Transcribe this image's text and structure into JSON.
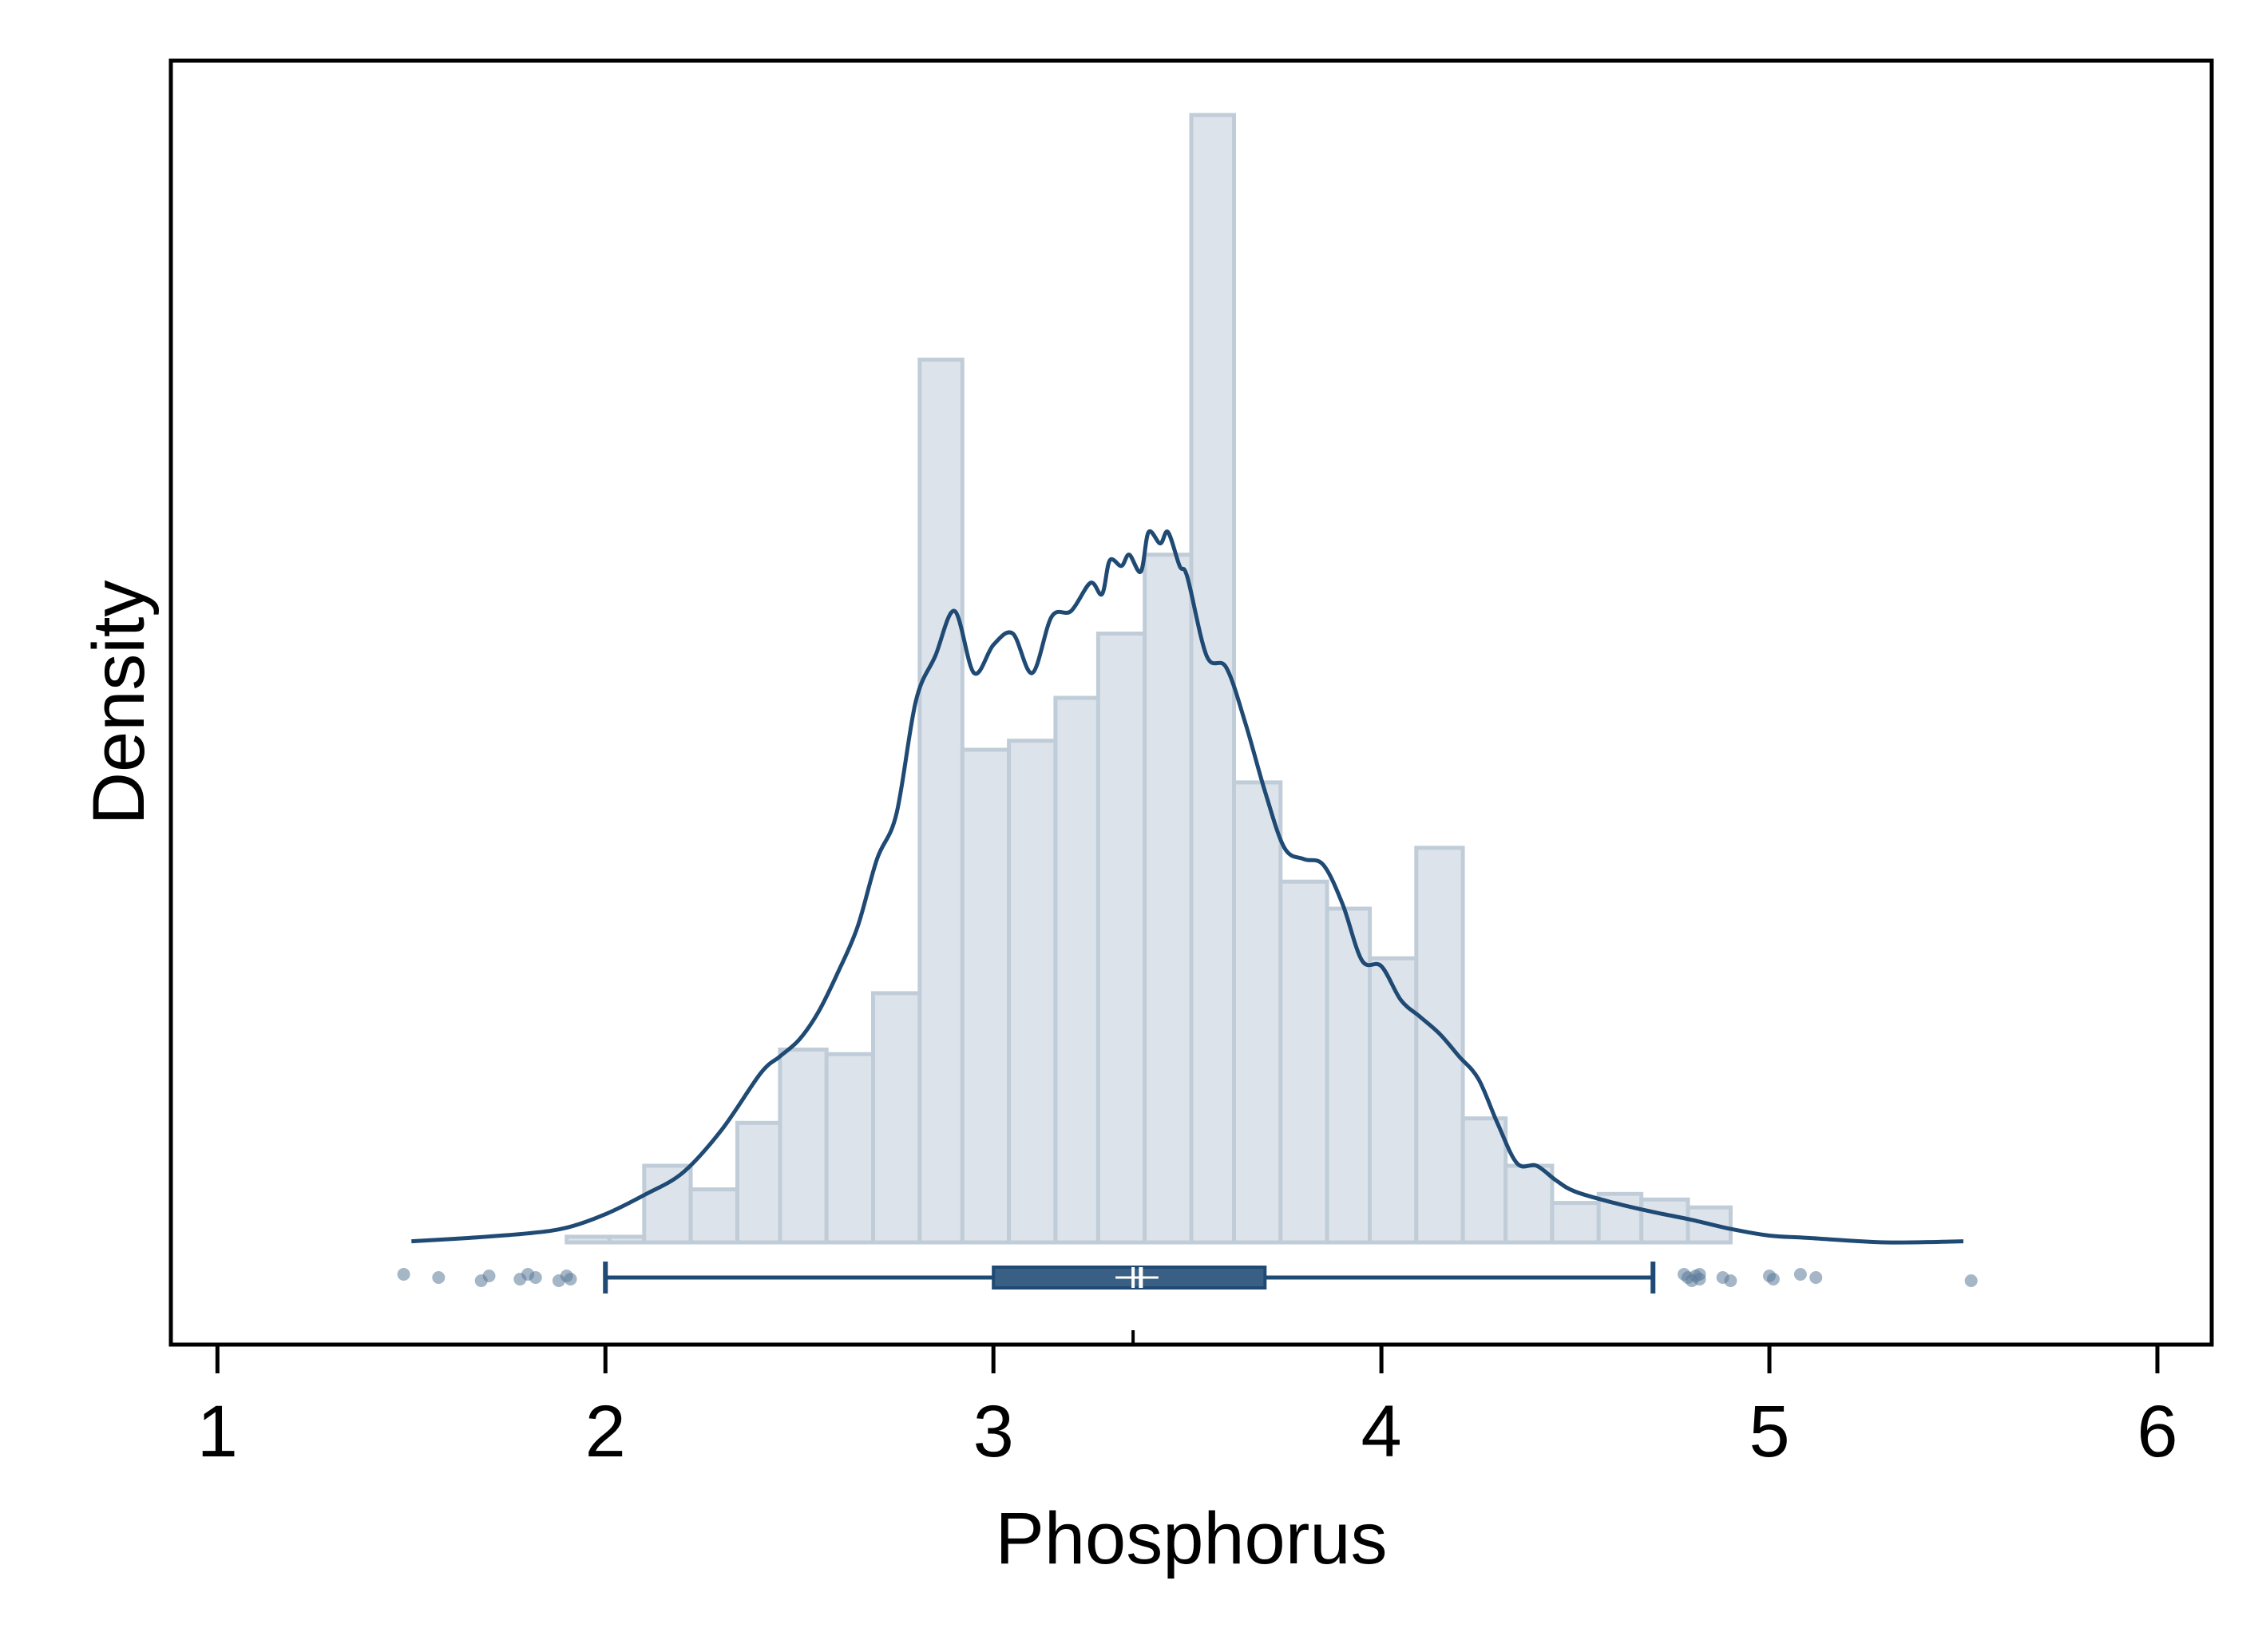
{
  "chart_data": {
    "type": "histogram",
    "xlabel": "Phosphorus",
    "ylabel": "Density",
    "xlim": [
      0.88,
      6.14
    ],
    "ylim": [
      -0.12,
      1.05
    ],
    "x_ticks": [
      1,
      2,
      3,
      4,
      5,
      6
    ],
    "x_tick_labels": [
      "1",
      "2",
      "3",
      "4",
      "5",
      "6"
    ],
    "grid": false,
    "legend": "none",
    "colors": {
      "bar_fill": "#dce3ea",
      "bar_stroke": "#c0cdd8",
      "line": "#1f4a74",
      "box_fill": "#3a5f85",
      "outlier": "#5b7a99",
      "frame": "#000000"
    },
    "histogram": {
      "bin_width": 0.117,
      "bins": [
        {
          "x0": 1.9,
          "x1": 2.01,
          "density": 0.005
        },
        {
          "x0": 2.01,
          "x1": 2.1,
          "density": 0.005
        },
        {
          "x0": 2.1,
          "x1": 2.22,
          "density": 0.068
        },
        {
          "x0": 2.22,
          "x1": 2.34,
          "density": 0.047
        },
        {
          "x0": 2.34,
          "x1": 2.45,
          "density": 0.106
        },
        {
          "x0": 2.45,
          "x1": 2.57,
          "density": 0.171
        },
        {
          "x0": 2.57,
          "x1": 2.69,
          "density": 0.167
        },
        {
          "x0": 2.69,
          "x1": 2.81,
          "density": 0.221
        },
        {
          "x0": 2.81,
          "x1": 2.92,
          "density": 0.783
        },
        {
          "x0": 2.92,
          "x1": 3.04,
          "density": 0.437
        },
        {
          "x0": 3.04,
          "x1": 3.16,
          "density": 0.445
        },
        {
          "x0": 3.16,
          "x1": 3.27,
          "density": 0.483
        },
        {
          "x0": 3.27,
          "x1": 3.39,
          "density": 0.54
        },
        {
          "x0": 3.39,
          "x1": 3.51,
          "density": 0.61
        },
        {
          "x0": 3.51,
          "x1": 3.62,
          "density": 1.0
        },
        {
          "x0": 3.62,
          "x1": 3.74,
          "density": 0.408
        },
        {
          "x0": 3.74,
          "x1": 3.86,
          "density": 0.32
        },
        {
          "x0": 3.86,
          "x1": 3.97,
          "density": 0.296
        },
        {
          "x0": 3.97,
          "x1": 4.09,
          "density": 0.252
        },
        {
          "x0": 4.09,
          "x1": 4.21,
          "density": 0.35
        },
        {
          "x0": 4.21,
          "x1": 4.32,
          "density": 0.11
        },
        {
          "x0": 4.32,
          "x1": 4.44,
          "density": 0.068
        },
        {
          "x0": 4.44,
          "x1": 4.56,
          "density": 0.035
        },
        {
          "x0": 4.56,
          "x1": 4.67,
          "density": 0.043
        },
        {
          "x0": 4.67,
          "x1": 4.79,
          "density": 0.038
        },
        {
          "x0": 4.79,
          "x1": 4.9,
          "density": 0.031
        }
      ]
    },
    "density_curve": {
      "x": [
        1.5,
        1.65,
        1.8,
        1.9,
        2.0,
        2.1,
        2.2,
        2.3,
        2.4,
        2.45,
        2.5,
        2.55,
        2.6,
        2.65,
        2.7,
        2.75,
        2.8,
        2.85,
        2.9,
        2.95,
        3.0,
        3.05,
        3.1,
        3.15,
        3.2,
        3.25,
        3.28,
        3.3,
        3.33,
        3.35,
        3.38,
        3.4,
        3.43,
        3.45,
        3.48,
        3.5,
        3.55,
        3.6,
        3.65,
        3.7,
        3.75,
        3.8,
        3.85,
        3.9,
        3.95,
        4.0,
        4.05,
        4.1,
        4.15,
        4.2,
        4.25,
        4.3,
        4.35,
        4.4,
        4.45,
        4.5,
        4.6,
        4.7,
        4.8,
        4.9,
        5.0,
        5.1,
        5.3,
        5.5
      ],
      "y": [
        0.001,
        0.004,
        0.008,
        0.013,
        0.025,
        0.042,
        0.062,
        0.1,
        0.15,
        0.165,
        0.18,
        0.205,
        0.24,
        0.28,
        0.34,
        0.38,
        0.48,
        0.52,
        0.56,
        0.505,
        0.53,
        0.54,
        0.505,
        0.555,
        0.56,
        0.585,
        0.575,
        0.605,
        0.6,
        0.61,
        0.595,
        0.63,
        0.62,
        0.63,
        0.6,
        0.59,
        0.52,
        0.51,
        0.46,
        0.4,
        0.35,
        0.34,
        0.335,
        0.3,
        0.25,
        0.245,
        0.215,
        0.2,
        0.185,
        0.165,
        0.145,
        0.105,
        0.07,
        0.068,
        0.055,
        0.045,
        0.035,
        0.027,
        0.02,
        0.012,
        0.006,
        0.004,
        0.0,
        0.001
      ]
    },
    "boxplot": {
      "whisker_low": 2.0,
      "q1": 3.0,
      "median": 3.38,
      "mean": 3.36,
      "q3": 3.7,
      "whisker_high": 4.7,
      "outliers": [
        1.48,
        1.57,
        1.68,
        1.7,
        1.78,
        1.8,
        1.82,
        1.88,
        1.9,
        1.91,
        4.78,
        4.79,
        4.8,
        4.81,
        4.82,
        4.82,
        4.88,
        4.9,
        5.0,
        5.01,
        5.08,
        5.12,
        5.52
      ]
    }
  }
}
